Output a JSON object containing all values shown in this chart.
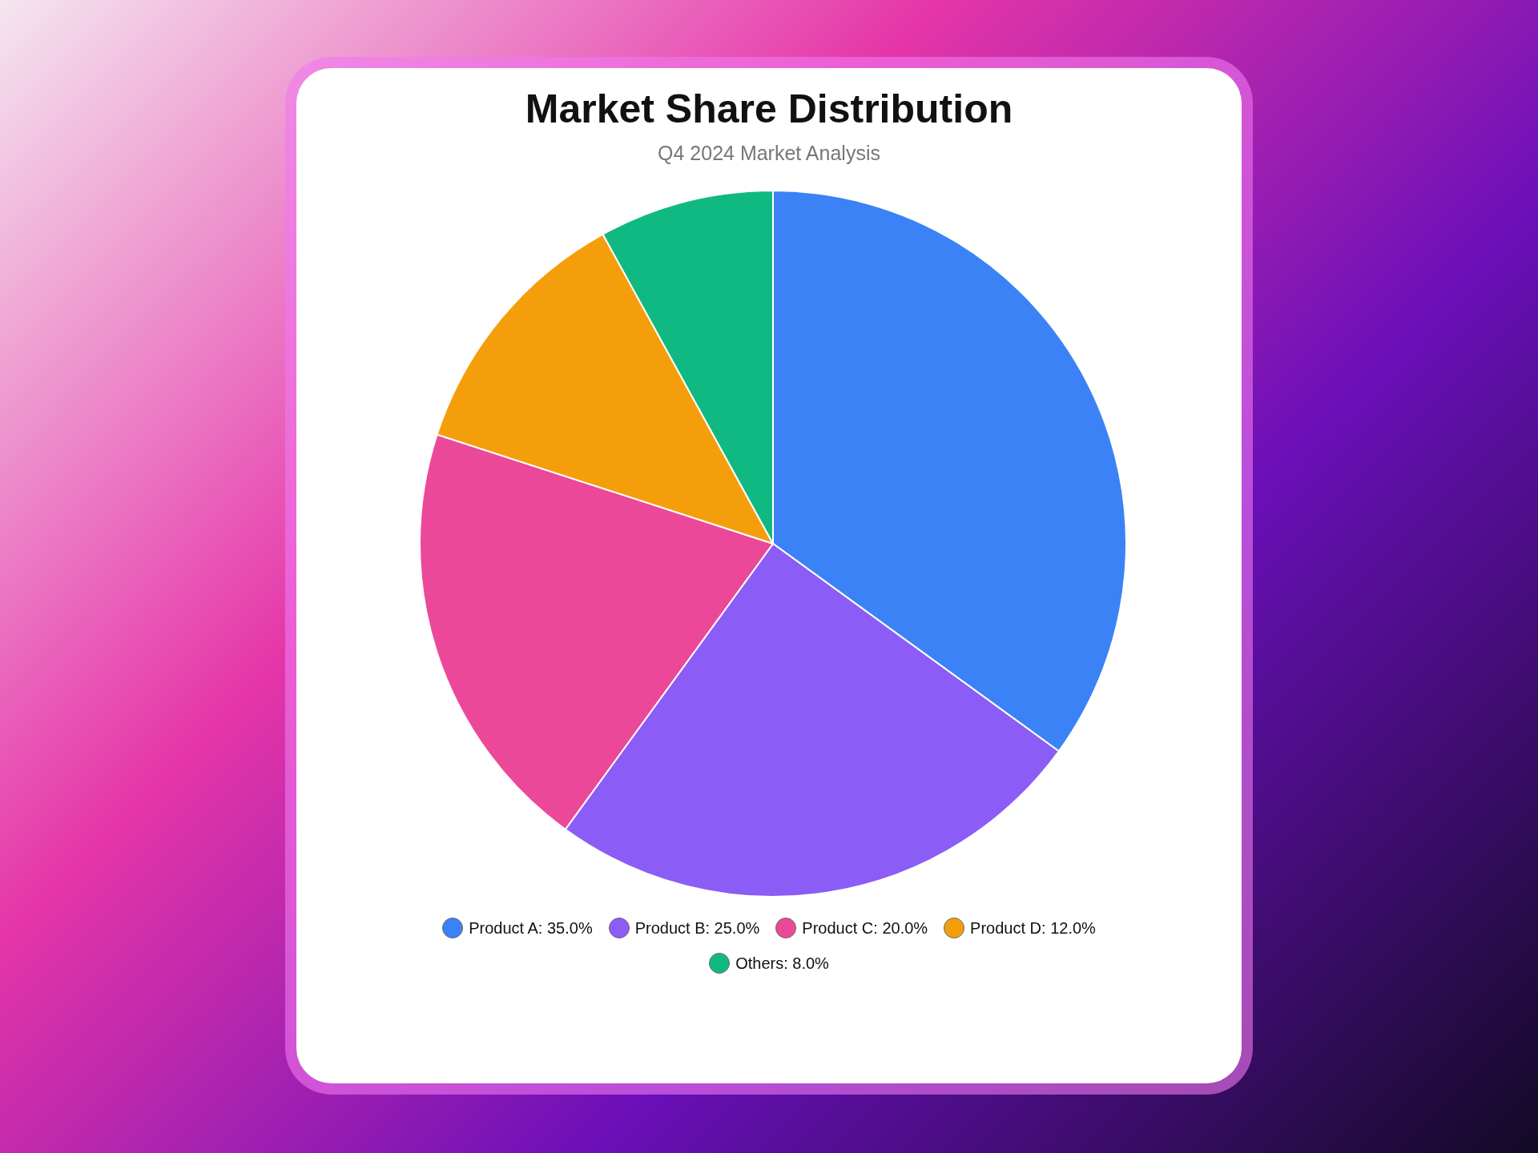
{
  "chart_data": {
    "type": "pie",
    "title": "Market Share Distribution",
    "subtitle": "Q4 2024 Market Analysis",
    "categories": [
      "Product A",
      "Product B",
      "Product C",
      "Product D",
      "Others"
    ],
    "values": [
      35,
      25,
      20,
      12,
      8
    ],
    "value_labels": [
      "35.0%",
      "25.0%",
      "20.0%",
      "12.0%",
      "8.0%"
    ],
    "colors": [
      "#3b82f6",
      "#8b5cf6",
      "#ec4899",
      "#f59e0b",
      "#10b981"
    ],
    "legend": "bottom"
  }
}
